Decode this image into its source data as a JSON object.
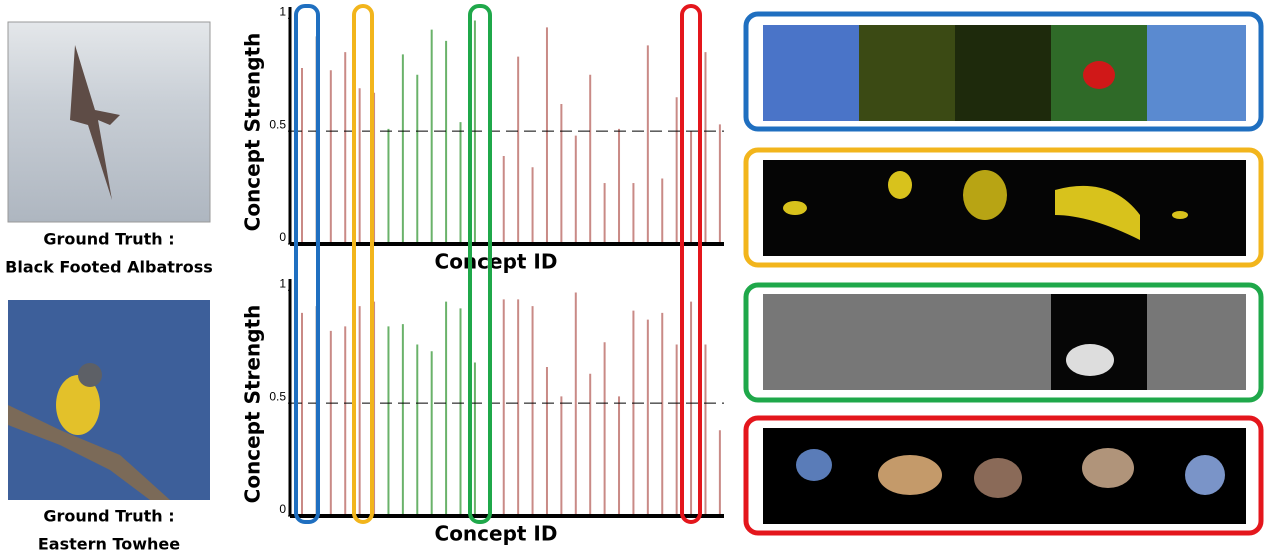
{
  "panels": [
    {
      "prefix": "Ground Truth :",
      "label": "Black Footed Albatross"
    },
    {
      "prefix": "Ground Truth :",
      "label": "Eastern Towhee"
    }
  ],
  "chart_data": [
    {
      "type": "bar",
      "xlabel": "Concept ID",
      "ylabel": "Concept Strength",
      "categories": [
        null,
        null,
        null,
        null,
        null,
        null,
        null,
        null,
        null,
        null,
        null,
        null,
        null,
        null,
        null,
        null,
        null,
        null,
        null,
        null,
        null,
        null,
        null,
        null,
        null,
        null,
        null,
        null,
        null,
        null
      ],
      "values": [
        0.78,
        0.92,
        0.77,
        0.85,
        0.69,
        0.67,
        0.51,
        0.84,
        0.75,
        0.95,
        0.9,
        0.54,
        0.99,
        0.68,
        0.39,
        0.83,
        0.34,
        0.96,
        0.62,
        0.48,
        0.75,
        0.27,
        0.51,
        0.27,
        0.88,
        0.29,
        0.65,
        0.5,
        0.85,
        0.53
      ],
      "colors": [
        "#c98a86",
        "#b9b2b2",
        "#c98a86",
        "#c98a86",
        "#c98a86",
        "#c98a86",
        "#6ab26a",
        "#6ab26a",
        "#6ab26a",
        "#6ab26a",
        "#6ab26a",
        "#6ab26a",
        "#6ab26a",
        "#6ab26a",
        "#c98a86",
        "#c98a86",
        "#c98a86",
        "#c98a86",
        "#c98a86",
        "#c98a86",
        "#c98a86",
        "#c98a86",
        "#c98a86",
        "#c98a86",
        "#c98a86",
        "#c98a86",
        "#c98a86",
        "#c98a86",
        "#c98a86",
        "#c98a86"
      ],
      "ylim": [
        0,
        1.05
      ],
      "yticks": [
        0,
        0.5,
        1
      ],
      "hline": 0.5
    },
    {
      "type": "bar",
      "xlabel": "Concept ID",
      "ylabel": "Concept Strength",
      "categories": [
        null,
        null,
        null,
        null,
        null,
        null,
        null,
        null,
        null,
        null,
        null,
        null,
        null,
        null,
        null,
        null,
        null,
        null,
        null,
        null,
        null,
        null,
        null,
        null,
        null,
        null,
        null,
        null,
        null,
        null
      ],
      "values": [
        0.9,
        0.93,
        0.82,
        0.84,
        0.93,
        0.95,
        0.84,
        0.85,
        0.76,
        0.73,
        0.95,
        0.92,
        0.68,
        0.95,
        0.96,
        0.96,
        0.93,
        0.66,
        0.53,
        0.99,
        0.63,
        0.77,
        0.53,
        0.91,
        0.87,
        0.9,
        0.76,
        0.95,
        0.76,
        0.38
      ],
      "colors": [
        "#c98a86",
        "#b9b2b2",
        "#c98a86",
        "#c98a86",
        "#c98a86",
        "#c98a86",
        "#6ab26a",
        "#6ab26a",
        "#6ab26a",
        "#6ab26a",
        "#6ab26a",
        "#6ab26a",
        "#6ab26a",
        "#6ab26a",
        "#c98a86",
        "#c98a86",
        "#c98a86",
        "#c98a86",
        "#c98a86",
        "#c98a86",
        "#c98a86",
        "#c98a86",
        "#c98a86",
        "#c98a86",
        "#c98a86",
        "#c98a86",
        "#c98a86",
        "#c98a86",
        "#c98a86",
        "#c98a86"
      ],
      "ylim": [
        0,
        1.05
      ],
      "yticks": [
        0,
        0.5,
        1
      ],
      "hline": 0.5
    }
  ]
}
